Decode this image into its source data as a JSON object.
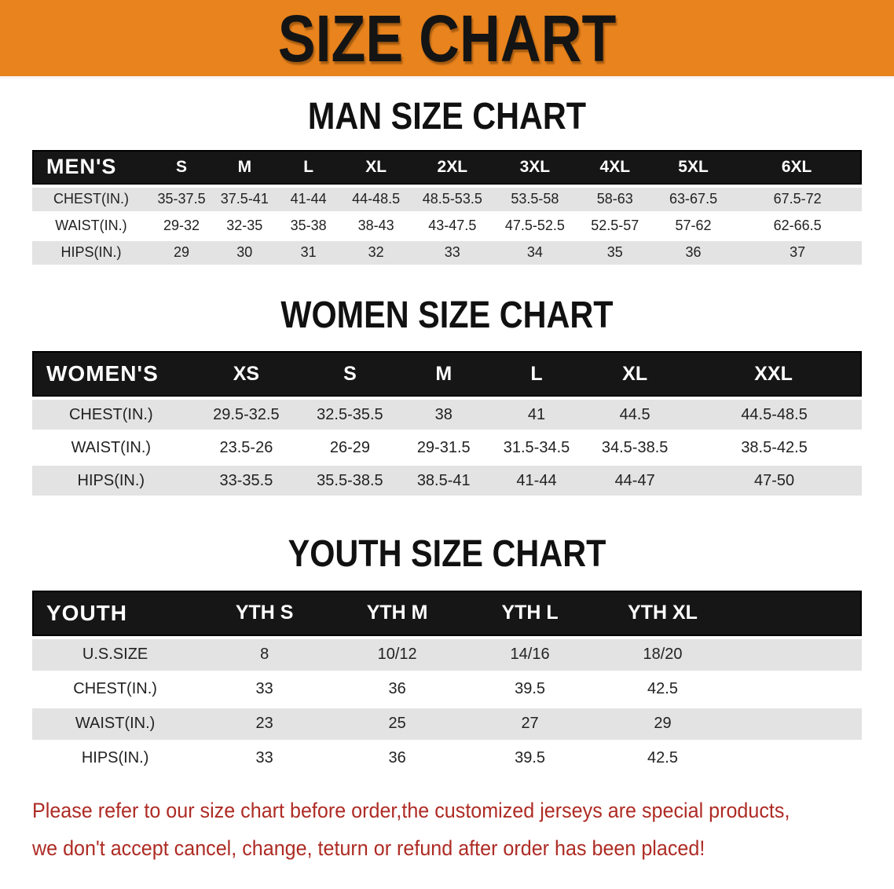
{
  "banner": {
    "title": "SIZE CHART"
  },
  "sections": [
    {
      "id": "men",
      "title": "MAN SIZE CHART",
      "group_label": "MEN'S",
      "columns": [
        "S",
        "M",
        "L",
        "XL",
        "2XL",
        "3XL",
        "4XL",
        "5XL",
        "6XL"
      ],
      "rows": [
        {
          "label": "CHEST(IN.)",
          "values": [
            "35-37.5",
            "37.5-41",
            "41-44",
            "44-48.5",
            "48.5-53.5",
            "53.5-58",
            "58-63",
            "63-67.5",
            "67.5-72"
          ]
        },
        {
          "label": "WAIST(IN.)",
          "values": [
            "29-32",
            "32-35",
            "35-38",
            "38-43",
            "43-47.5",
            "47.5-52.5",
            "52.5-57",
            "57-62",
            "62-66.5"
          ]
        },
        {
          "label": "HIPS(IN.)",
          "values": [
            "29",
            "30",
            "31",
            "32",
            "33",
            "34",
            "35",
            "36",
            "37"
          ]
        }
      ]
    },
    {
      "id": "women",
      "title": "WOMEN SIZE CHART",
      "group_label": "WOMEN'S",
      "columns": [
        "XS",
        "S",
        "M",
        "L",
        "XL",
        "XXL"
      ],
      "rows": [
        {
          "label": "CHEST(IN.)",
          "values": [
            "29.5-32.5",
            "32.5-35.5",
            "38",
            "41",
            "44.5",
            "44.5-48.5"
          ]
        },
        {
          "label": "WAIST(IN.)",
          "values": [
            "23.5-26",
            "26-29",
            "29-31.5",
            "31.5-34.5",
            "34.5-38.5",
            "38.5-42.5"
          ]
        },
        {
          "label": "HIPS(IN.)",
          "values": [
            "33-35.5",
            "35.5-38.5",
            "38.5-41",
            "41-44",
            "44-47",
            "47-50"
          ]
        }
      ]
    },
    {
      "id": "youth",
      "title": "YOUTH SIZE CHART",
      "group_label": "YOUTH",
      "columns": [
        "YTH S",
        "YTH M",
        "YTH L",
        "YTH XL"
      ],
      "rows": [
        {
          "label": "U.S.SIZE",
          "values": [
            "8",
            "10/12",
            "14/16",
            "18/20"
          ]
        },
        {
          "label": "CHEST(IN.)",
          "values": [
            "33",
            "36",
            "39.5",
            "42.5"
          ]
        },
        {
          "label": "WAIST(IN.)",
          "values": [
            "23",
            "25",
            "27",
            "29"
          ]
        },
        {
          "label": "HIPS(IN.)",
          "values": [
            "33",
            "36",
            "39.5",
            "42.5"
          ]
        }
      ]
    }
  ],
  "footer": {
    "line1": "Please refer to our size chart before order,the customized jerseys are special products,",
    "line2": "we don't accept cancel, change, teturn or refund after order has been placed!"
  },
  "colors": {
    "banner_bg": "#E8831D",
    "header_bar": "#161616",
    "row_alt": "#E3E3E3",
    "notice_text": "#AE2B24"
  }
}
